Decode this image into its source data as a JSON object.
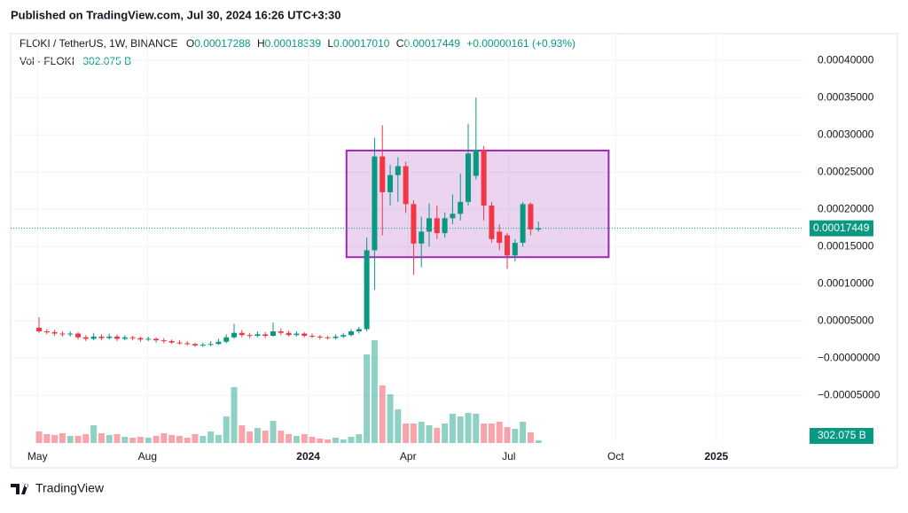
{
  "published": "Published on TradingView.com, Jul 30, 2024 16:26 UTC+3:30",
  "footer": "TradingView",
  "chart_data": {
    "type": "candlestick",
    "symbol": "FLOKI / TetherUS, 1W, BINANCE",
    "ohlc_legend": [
      {
        "key": "O",
        "value": "0.00017288"
      },
      {
        "key": "H",
        "value": "0.00018339"
      },
      {
        "key": "L",
        "value": "0.00017010"
      },
      {
        "key": "C",
        "value": "0.00017449"
      }
    ],
    "change": "+0.00000161 (+0.93%)",
    "volume_legend": "Vol · FLOKI",
    "volume_label": "302.075 B",
    "last_price": {
      "value": 0.00017449,
      "label": "0.00017449"
    },
    "up_color": "#089981",
    "down_color": "#f23645",
    "open": [
      4.1e-05,
      3.6e-05,
      3.5e-05,
      3.3e-05,
      3.2e-05,
      3.3e-05,
      2.8e-05,
      2.6e-05,
      2.9e-05,
      2.7e-05,
      2.9e-05,
      2.6e-05,
      2.8e-05,
      2.7e-05,
      2.5e-05,
      2.6e-05,
      2.4e-05,
      2.3e-05,
      2.1e-05,
      2e-05,
      1.9e-05,
      1.7e-05,
      1.8e-05,
      1.9e-05,
      2.2e-05,
      2.8e-05,
      3.4e-05,
      3.1e-05,
      3e-05,
      3.2e-05,
      3e-05,
      3.6e-05,
      3.4e-05,
      3.1e-05,
      3.3e-05,
      3e-05,
      2.9e-05,
      2.8e-05,
      2.7e-05,
      2.9e-05,
      3.1e-05,
      3.6e-05,
      3.9e-05,
      0.000145,
      0.000271,
      0.000223,
      0.000246,
      0.000258,
      0.000207,
      0.000154,
      0.00017,
      0.000188,
      0.000168,
      0.000188,
      0.000194,
      0.00021,
      0.000245,
      0.00028,
      0.000205,
      0.00017,
      0.000165,
      0.000138,
      0.000155,
      0.000207,
      0.00017288
    ],
    "high": [
      5.5e-05,
      3.9e-05,
      3.8e-05,
      3.6e-05,
      3.6e-05,
      3.5e-05,
      3.1e-05,
      3.4e-05,
      3.2e-05,
      3.3e-05,
      3.2e-05,
      3.1e-05,
      3e-05,
      2.9e-05,
      2.9e-05,
      2.8e-05,
      2.7e-05,
      2.5e-05,
      2.4e-05,
      2.3e-05,
      2.1e-05,
      2.1e-05,
      2.3e-05,
      2.6e-05,
      3.2e-05,
      4.6e-05,
      3.8e-05,
      3.4e-05,
      3.6e-05,
      3.5e-05,
      4.8e-05,
      4e-05,
      3.7e-05,
      3.6e-05,
      3.5e-05,
      3.3e-05,
      3.1e-05,
      3e-05,
      3.2e-05,
      3.4e-05,
      3.9e-05,
      4.2e-05,
      0.000162,
      0.000296,
      0.000313,
      0.00026,
      0.00027,
      0.000264,
      0.000212,
      0.00019,
      0.000208,
      0.000205,
      0.000196,
      0.00022,
      0.000248,
      0.000315,
      0.00035,
      0.000285,
      0.00021,
      0.00018,
      0.000168,
      0.00016,
      0.00021,
      0.000209,
      0.00018339
    ],
    "low": [
      3.4e-05,
      3.2e-05,
      3e-05,
      2.9e-05,
      2.9e-05,
      2.5e-05,
      2.3e-05,
      2.4e-05,
      2.4e-05,
      2.5e-05,
      2.3e-05,
      2.4e-05,
      2.4e-05,
      2.2e-05,
      2.3e-05,
      2.1e-05,
      2e-05,
      1.9e-05,
      1.8e-05,
      1.7e-05,
      1.5e-05,
      1.5e-05,
      1.6e-05,
      1.8e-05,
      2e-05,
      2.6e-05,
      2.8e-05,
      2.7e-05,
      2.8e-05,
      2.7e-05,
      2.9e-05,
      3.1e-05,
      2.9e-05,
      2.9e-05,
      2.8e-05,
      2.7e-05,
      2.5e-05,
      2.5e-05,
      2.5e-05,
      2.7e-05,
      2.9e-05,
      3.3e-05,
      3.6e-05,
      9.2e-05,
      0.000165,
      0.000205,
      0.00021,
      0.000195,
      0.000112,
      0.000122,
      0.00015,
      0.00016,
      0.000162,
      0.00018,
      0.000185,
      0.000205,
      0.00024,
      0.000185,
      0.000155,
      0.000145,
      0.00012,
      0.00013,
      0.00015,
      0.000165,
      0.0001701
    ],
    "close": [
      3.6e-05,
      3.5e-05,
      3.3e-05,
      3.2e-05,
      3.3e-05,
      2.8e-05,
      2.6e-05,
      2.9e-05,
      2.7e-05,
      2.9e-05,
      2.6e-05,
      2.8e-05,
      2.7e-05,
      2.5e-05,
      2.6e-05,
      2.4e-05,
      2.3e-05,
      2.1e-05,
      2e-05,
      1.9e-05,
      1.7e-05,
      1.8e-05,
      1.9e-05,
      2.2e-05,
      2.8e-05,
      3.4e-05,
      3.1e-05,
      3e-05,
      3.2e-05,
      3e-05,
      3.6e-05,
      3.4e-05,
      3.1e-05,
      3.3e-05,
      3e-05,
      2.9e-05,
      2.8e-05,
      2.7e-05,
      2.9e-05,
      3.1e-05,
      3.6e-05,
      3.9e-05,
      0.000145,
      0.000271,
      0.000223,
      0.000246,
      0.000258,
      0.000207,
      0.000154,
      0.00017,
      0.000188,
      0.000168,
      0.000188,
      0.000194,
      0.00021,
      0.000275,
      0.00028,
      0.000205,
      0.00016,
      0.000155,
      0.000138,
      0.000155,
      0.000207,
      0.000173,
      0.00017449
    ],
    "volume": [
      1300,
      1000,
      900,
      1100,
      800,
      800,
      1000,
      2000,
      1100,
      900,
      1000,
      700,
      600,
      700,
      600,
      800,
      1100,
      900,
      800,
      600,
      1000,
      800,
      1300,
      900,
      3000,
      6300,
      2000,
      1300,
      1700,
      1400,
      2500,
      1400,
      1000,
      800,
      1000,
      700,
      500,
      400,
      600,
      400,
      700,
      1000,
      10000,
      11600,
      6500,
      5500,
      3800,
      2200,
      2200,
      2400,
      2000,
      1700,
      2200,
      3300,
      3000,
      3400,
      3300,
      2200,
      2200,
      2400,
      1800,
      1600,
      2400,
      1200,
      302.075
    ],
    "xlim": [
      -3.64,
      97.84
    ],
    "xticks": [
      {
        "value": -0.2,
        "label": "May"
      },
      {
        "value": 13.9,
        "label": "Aug"
      },
      {
        "value": 34.5,
        "label": "2024"
      },
      {
        "value": 47.3,
        "label": "Apr"
      },
      {
        "value": 60.2,
        "label": "Jul"
      },
      {
        "value": 73.9,
        "label": "Oct"
      },
      {
        "value": 86.8,
        "label": "2025"
      }
    ],
    "ylim": [
      -0.000114,
      0.000436
    ],
    "yticks": [
      {
        "value": 0.0004,
        "label": "0.00040000"
      },
      {
        "value": 0.00035,
        "label": "0.00035000"
      },
      {
        "value": 0.0003,
        "label": "0.00030000"
      },
      {
        "value": 0.00025,
        "label": "0.00025000"
      },
      {
        "value": 0.0002,
        "label": "0.00020000"
      },
      {
        "value": 0.00015,
        "label": "0.00015000"
      },
      {
        "value": 0.0001,
        "label": "0.00010000"
      },
      {
        "value": 5e-05,
        "label": "0.00005000"
      },
      {
        "value": 0,
        "label": "−0.00000000"
      },
      {
        "value": -5e-05,
        "label": "−0.00005000"
      }
    ],
    "volume_lim": [
      0,
      14000
    ],
    "grid": true,
    "rectangle": {
      "x": [
        39.4,
        73
      ],
      "top": 0.000279,
      "bottom": 0.0001357,
      "color": "#9c27b0"
    }
  }
}
